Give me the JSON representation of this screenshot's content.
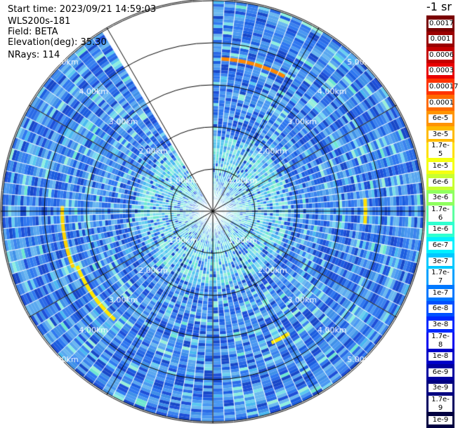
{
  "header": {
    "start_time": "Start time: 2023/09/21 14:59:03",
    "instrument": "WLS200s-181",
    "field": "Field: BETA",
    "elevation": "Elevation(deg): 35.30",
    "nrays": "NRays: 114"
  },
  "rings": {
    "labels": [
      "1.00km",
      "2.00km",
      "3.00km",
      "4.00km",
      "5.00km"
    ],
    "max_range_km": 5.0
  },
  "colorbar": {
    "title": "-1 sr",
    "labels": [
      "0.0017",
      "0.001",
      "0.0006",
      "0.0003",
      "0.00017",
      "0.0001",
      "6e-5",
      "3e-5",
      "1.7e-5",
      "1e-5",
      "6e-6",
      "3e-6",
      "1.7e-6",
      "1e-6",
      "6e-7",
      "3e-7",
      "1.7e-7",
      "1e-7",
      "6e-8",
      "3e-8",
      "1.7e-8",
      "1e-8",
      "6e-9",
      "3e-9",
      "1.7e-9",
      "1e-9"
    ],
    "colors": [
      "#7a0000",
      "#9a0000",
      "#c40000",
      "#e80000",
      "#ff3300",
      "#ff6a00",
      "#ff9400",
      "#ffbb00",
      "#ffe000",
      "#f5ff10",
      "#c8ff30",
      "#8fff60",
      "#5cffa0",
      "#30ffd0",
      "#00f0ff",
      "#00c8ff",
      "#00a0ff",
      "#0078ff",
      "#0050ff",
      "#0028ff",
      "#0000f0",
      "#0000c8",
      "#0000a0",
      "#000080",
      "#000060",
      "#000040"
    ]
  },
  "colors": {
    "background": "#ffffff",
    "ring_line": "#000000",
    "label_text": "#ffffff"
  }
}
